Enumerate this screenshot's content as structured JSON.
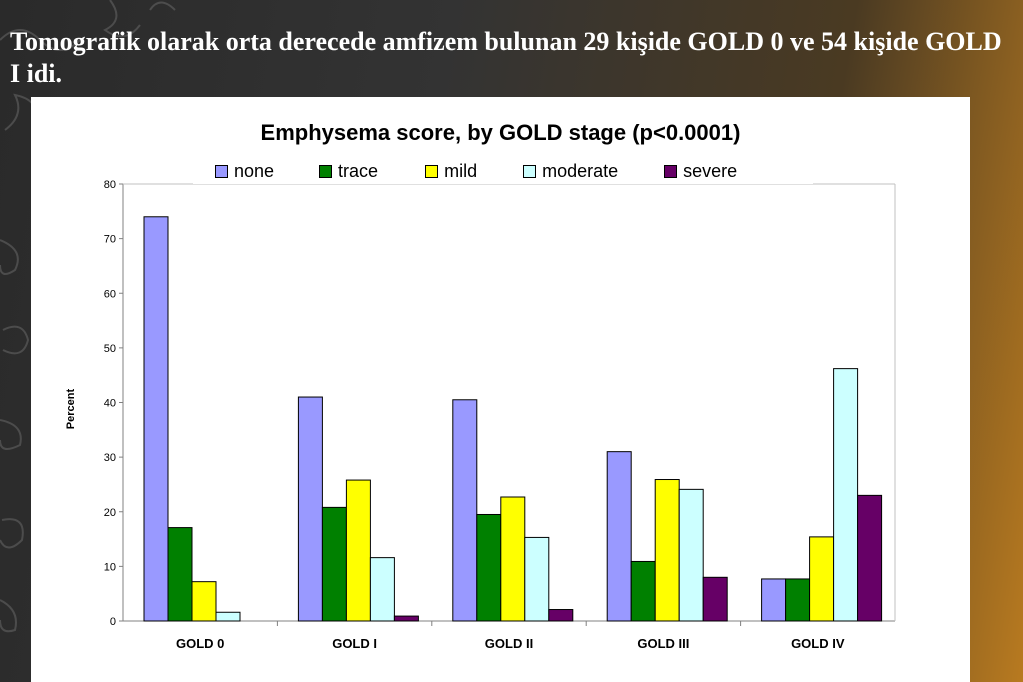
{
  "slide": {
    "title": "Tomografik olarak orta derecede amfizem bulunan 29 kişide GOLD 0 ve 54 kişide GOLD I idi."
  },
  "chart_data": {
    "type": "bar",
    "title": "Emphysema score, by GOLD stage (p<0.0001)",
    "xlabel": "",
    "ylabel": "Percent",
    "ylim": [
      0,
      80
    ],
    "yticks": [
      0,
      10,
      20,
      30,
      40,
      50,
      60,
      70,
      80
    ],
    "categories": [
      "GOLD 0",
      "GOLD I",
      "GOLD II",
      "GOLD III",
      "GOLD IV"
    ],
    "legend_position": "top",
    "grid": false,
    "series": [
      {
        "name": "none",
        "color": "#9999ff",
        "values": [
          74,
          41,
          40.5,
          31,
          7.7
        ]
      },
      {
        "name": "trace",
        "color": "#008000",
        "values": [
          17.1,
          20.8,
          19.5,
          10.9,
          7.7
        ]
      },
      {
        "name": "mild",
        "color": "#ffff00",
        "values": [
          7.2,
          25.8,
          22.7,
          25.9,
          15.4
        ]
      },
      {
        "name": "moderate",
        "color": "#ccffff",
        "values": [
          1.6,
          11.6,
          15.3,
          24.1,
          46.2
        ]
      },
      {
        "name": "severe",
        "color": "#660066",
        "values": [
          0,
          0.9,
          2.1,
          8.0,
          23.0
        ]
      }
    ]
  }
}
